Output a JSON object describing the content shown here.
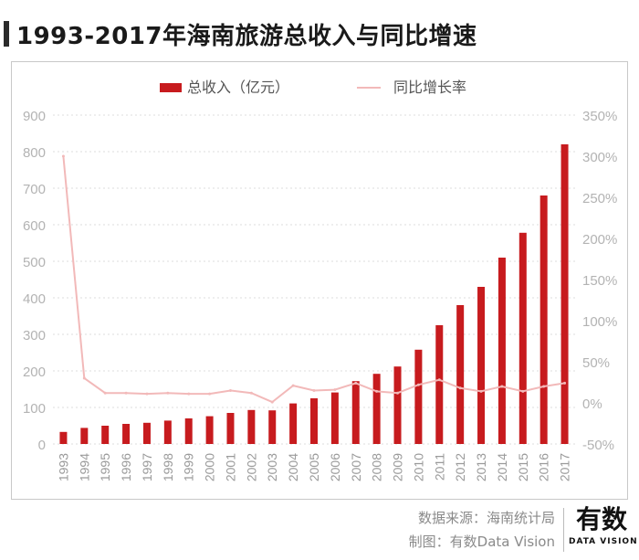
{
  "title": "1993-2017年海南旅游总收入与同比增速",
  "footer": {
    "source": "数据来源：海南统计局",
    "credit": "制图：有数Data Vision"
  },
  "logo": {
    "main": "有数",
    "sub": "DATA VISION"
  },
  "colors": {
    "bar": "#c71b1e",
    "line": "#f2b9b9",
    "grid": "#dddddd",
    "tick": "#b3b3b3"
  },
  "chart_data": {
    "type": "bar",
    "title": "1993-2017年海南旅游总收入与同比增速",
    "categories": [
      "1993",
      "1994",
      "1995",
      "1996",
      "1997",
      "1998",
      "1999",
      "2000",
      "2001",
      "2002",
      "2003",
      "2004",
      "2005",
      "2006",
      "2007",
      "2008",
      "2009",
      "2010",
      "2011",
      "2012",
      "2013",
      "2014",
      "2015",
      "2016",
      "2017"
    ],
    "series": [
      {
        "name": "总收入（亿元）",
        "type": "bar",
        "axis": "left",
        "values": [
          33,
          44,
          50,
          55,
          58,
          64,
          70,
          76,
          85,
          93,
          92,
          111,
          125,
          141,
          172,
          192,
          212,
          258,
          325,
          380,
          430,
          510,
          578,
          680,
          820
        ]
      },
      {
        "name": "同比增长率",
        "type": "line",
        "axis": "right",
        "unit": "%",
        "values": [
          300,
          30,
          12,
          12,
          11,
          12,
          11,
          11,
          15,
          12,
          1,
          21,
          15,
          16,
          24,
          14,
          12,
          22,
          28,
          18,
          14,
          20,
          14,
          20,
          24
        ]
      }
    ],
    "y_left": {
      "min": 0,
      "max": 900,
      "ticks": [
        "0",
        "100",
        "200",
        "300",
        "400",
        "500",
        "600",
        "700",
        "800",
        "900"
      ]
    },
    "y_right": {
      "min": -50,
      "max": 350,
      "ticks": [
        "-50%",
        "0%",
        "50%",
        "100%",
        "150%",
        "200%",
        "250%",
        "300%",
        "350%"
      ]
    },
    "legend": [
      "总收入（亿元）",
      "同比增长率"
    ],
    "grid": true
  }
}
